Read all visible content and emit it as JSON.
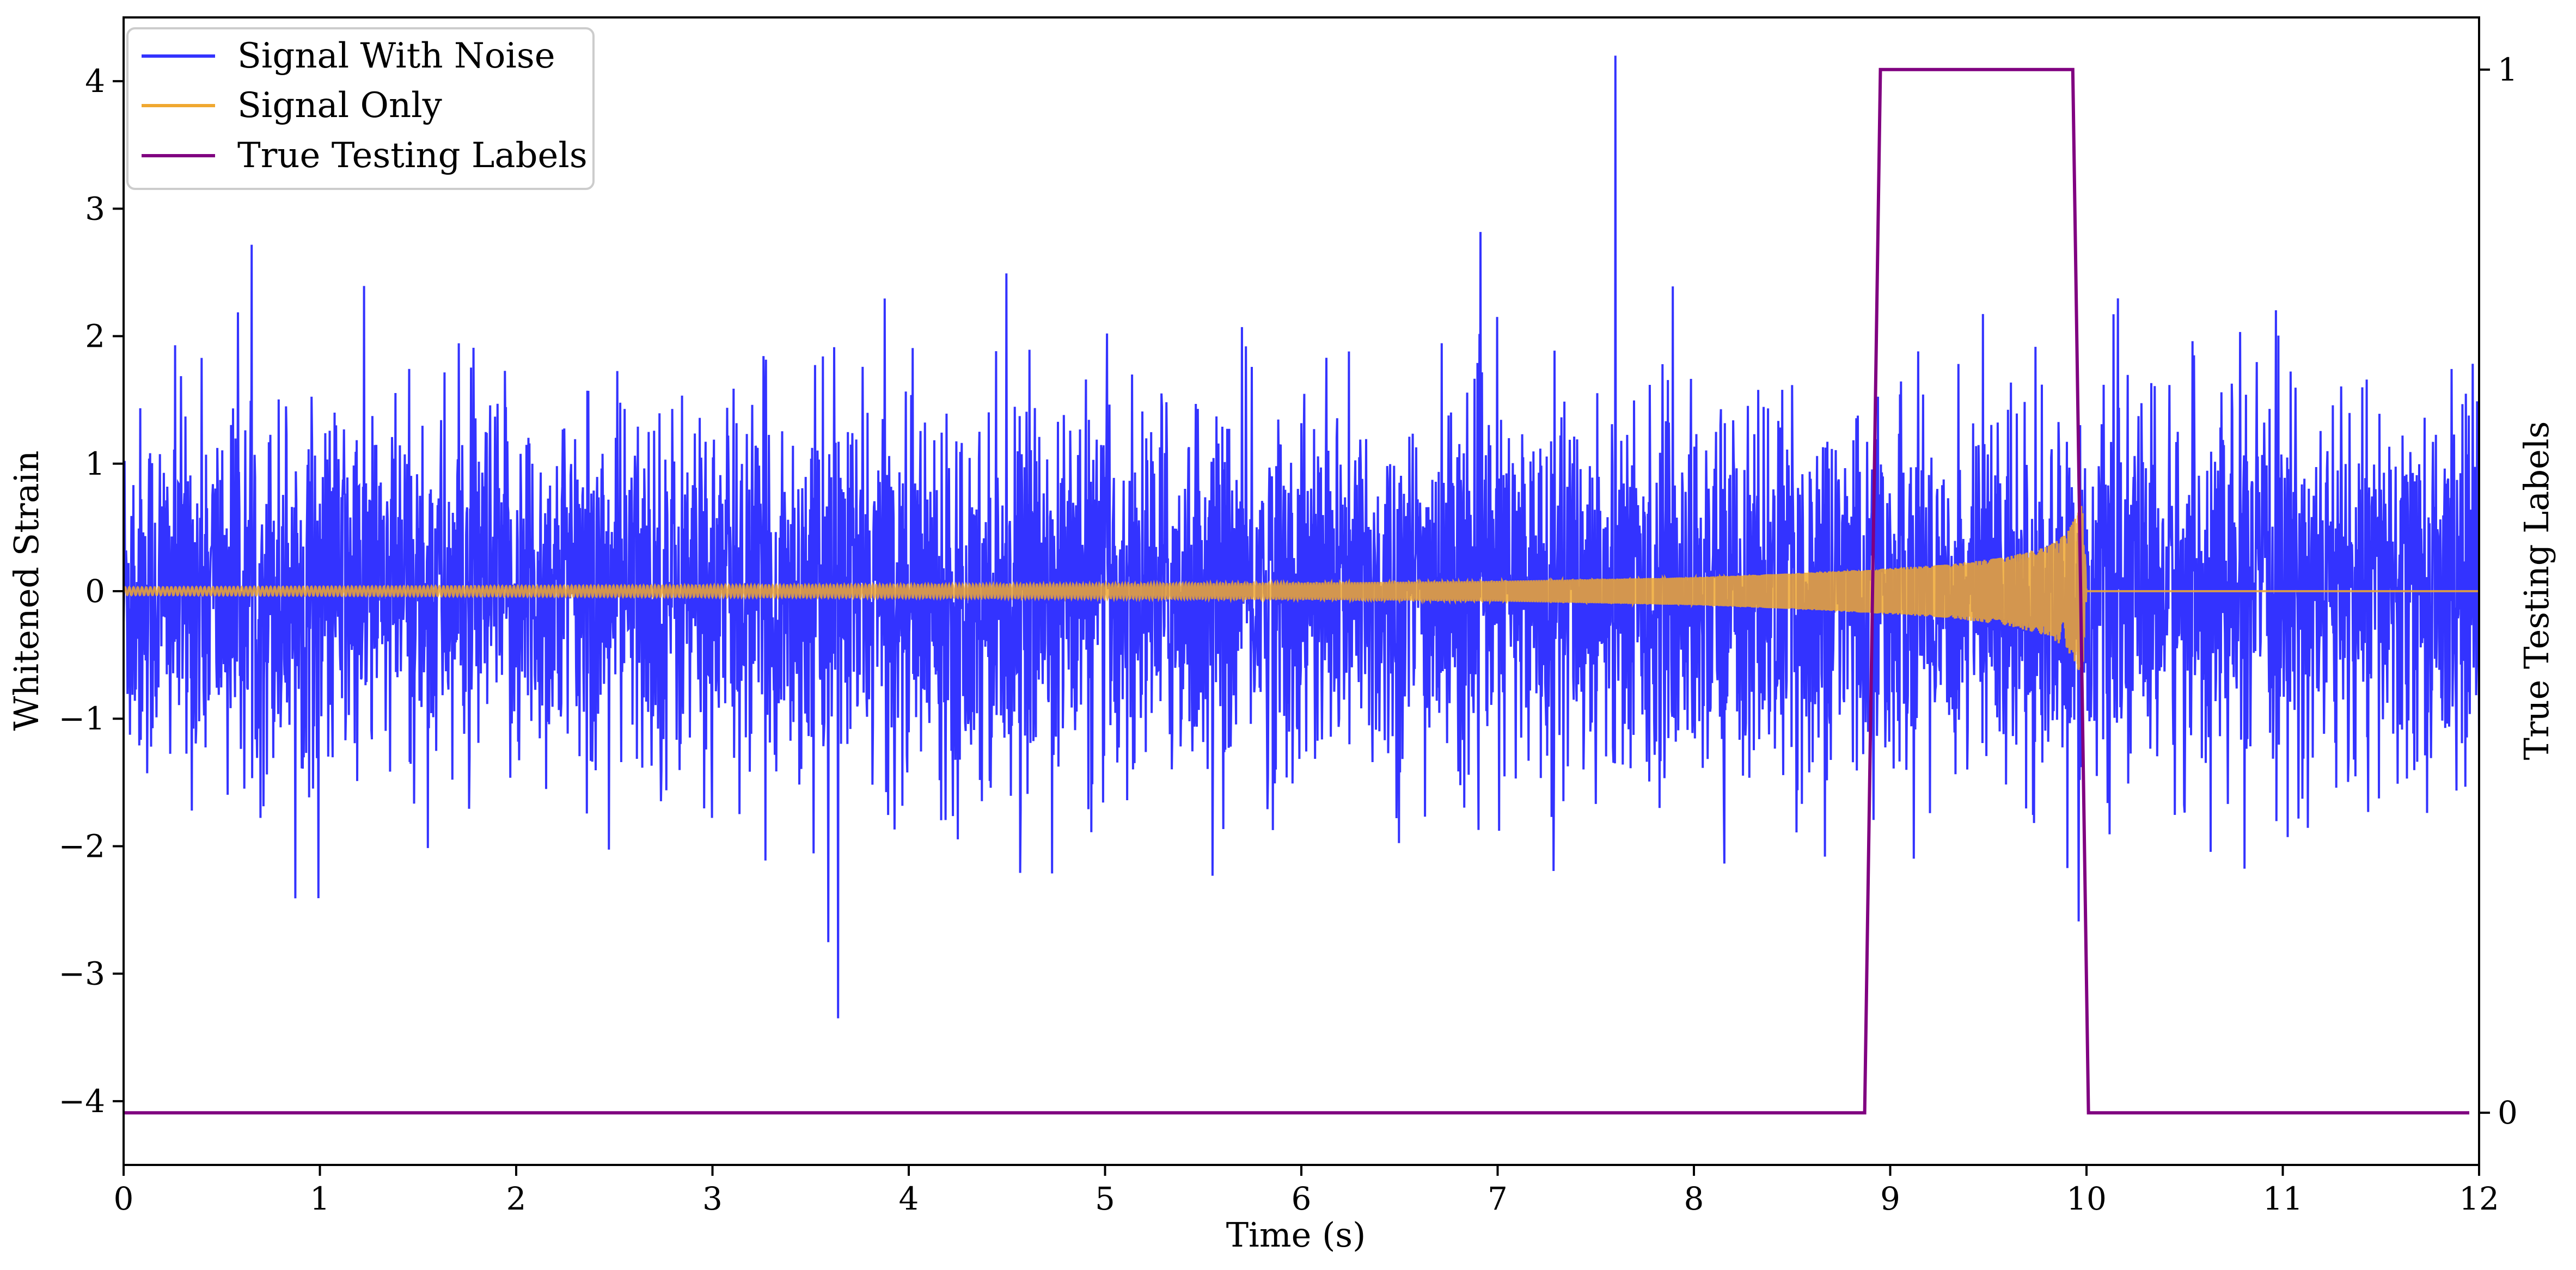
{
  "chart_data": {
    "type": "line",
    "xlabel": "Time (s)",
    "ylabel": "Whitened Strain",
    "y2label": "True Testing Labels",
    "xlim": [
      0,
      12
    ],
    "ylim": [
      -4.5,
      4.5
    ],
    "y2lim": [
      -0.05,
      1.05
    ],
    "x_ticks": [
      "0",
      "1",
      "2",
      "3",
      "4",
      "5",
      "6",
      "7",
      "8",
      "9",
      "10",
      "11",
      "12"
    ],
    "y_ticks": [
      "−4",
      "−3",
      "−2",
      "−1",
      "0",
      "1",
      "2",
      "3",
      "4"
    ],
    "y2_ticks": [
      "0",
      "1"
    ],
    "legend_position": "upper left",
    "grid": false,
    "series": [
      {
        "name": "Signal With Noise",
        "color": "#3333ff",
        "axis": "left",
        "description": "whitened noisy strain, approx. amplitude +/-3 with peaks to 4.2 near t=7.6 s"
      },
      {
        "name": "Signal Only",
        "color": "#f0a830",
        "axis": "left",
        "x": [
          0,
          1,
          2,
          3,
          4,
          5,
          6,
          7,
          8,
          8.5,
          9,
          9.3,
          9.6,
          9.8,
          9.9,
          9.95,
          9.98,
          10.0,
          12.0
        ],
        "envelope": [
          0.03,
          0.035,
          0.04,
          0.045,
          0.05,
          0.055,
          0.065,
          0.08,
          0.11,
          0.14,
          0.18,
          0.21,
          0.27,
          0.35,
          0.45,
          0.6,
          0.7,
          0.0,
          0.0
        ]
      },
      {
        "name": "True Testing Labels",
        "color": "#800080",
        "axis": "right",
        "x": [
          0,
          8.87,
          8.95,
          9.93,
          10.01,
          11.95
        ],
        "values": [
          0,
          0,
          1,
          1,
          0,
          0
        ]
      }
    ]
  }
}
